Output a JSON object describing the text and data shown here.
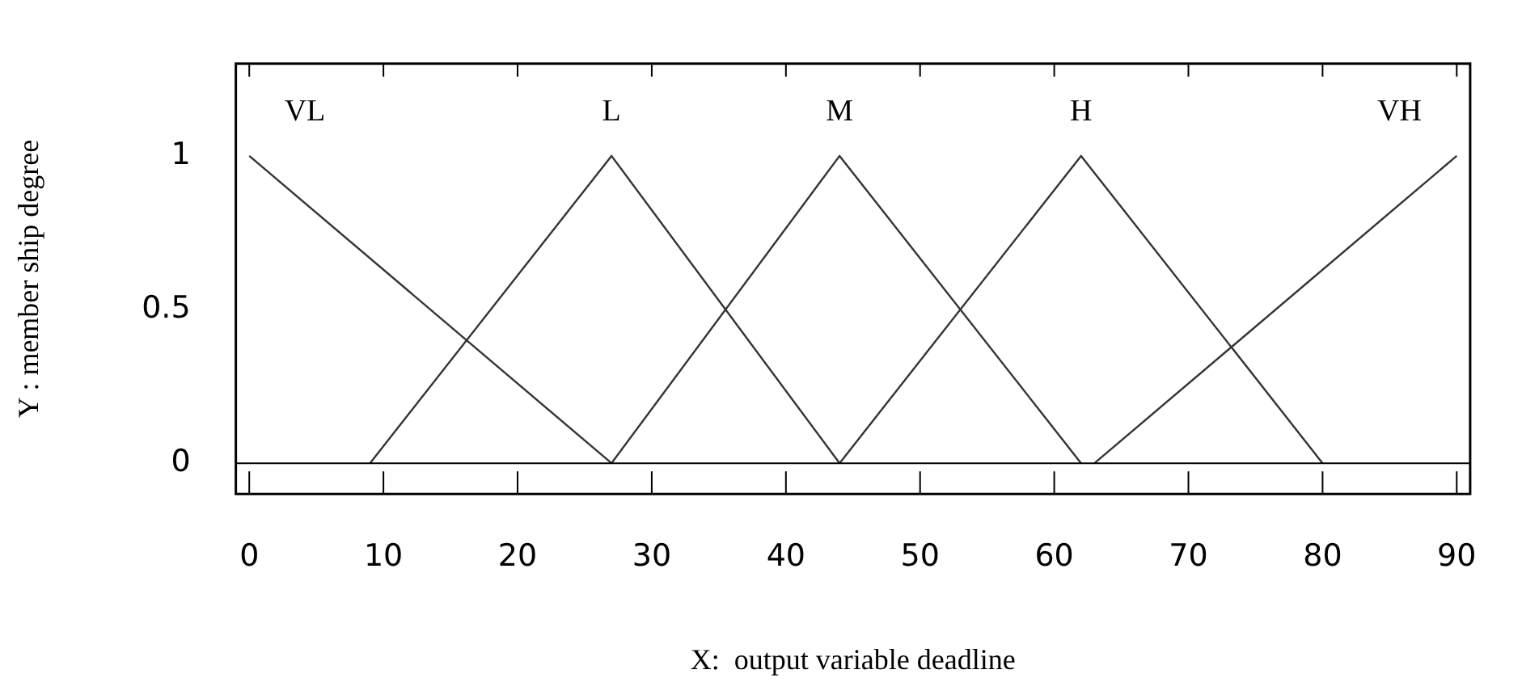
{
  "chart_data": {
    "type": "line",
    "xlabel": "X:  output variable deadline",
    "ylabel": "Y : member ship degree",
    "xlim": [
      -1,
      91
    ],
    "xticks": [
      0,
      10,
      20,
      30,
      40,
      50,
      60,
      70,
      80,
      90
    ],
    "ylim": [
      -0.1,
      1.3
    ],
    "yticks": [
      0,
      0.5,
      1
    ],
    "grid": false,
    "legend": false,
    "marker": "none",
    "line_style": "solid",
    "ref_lines": [
      {
        "axis": "y",
        "value": 0,
        "color": "#000000"
      }
    ],
    "series": [
      {
        "name": "VL",
        "color": "#333333",
        "x": [
          0,
          27
        ],
        "values": [
          1,
          0
        ]
      },
      {
        "name": "L",
        "color": "#333333",
        "x": [
          9,
          27,
          44
        ],
        "values": [
          0,
          1,
          0
        ]
      },
      {
        "name": "M",
        "color": "#333333",
        "x": [
          27,
          44,
          62
        ],
        "values": [
          0,
          1,
          0
        ]
      },
      {
        "name": "H",
        "color": "#333333",
        "x": [
          44,
          62,
          80
        ],
        "values": [
          0,
          1,
          0
        ]
      },
      {
        "name": "VH",
        "color": "#333333",
        "x": [
          63,
          90
        ],
        "values": [
          0,
          1
        ]
      }
    ]
  }
}
